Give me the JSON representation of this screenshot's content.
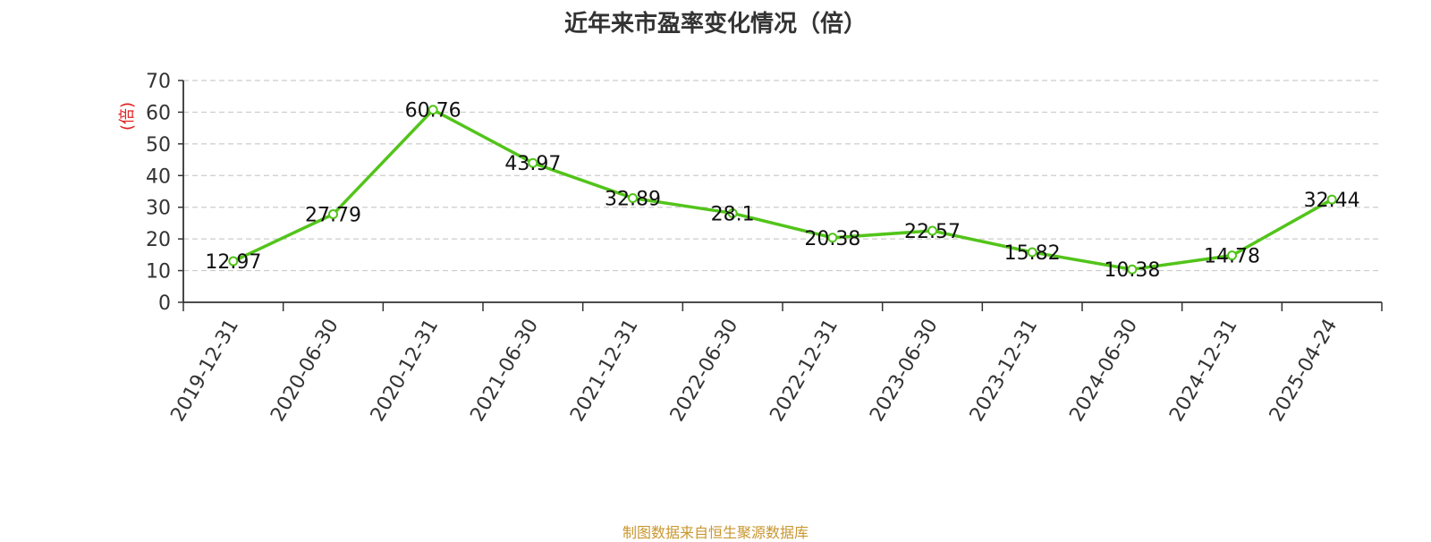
{
  "chart_data": {
    "type": "line",
    "title": "近年来市盈率变化情况（倍）",
    "ylabel": "(倍)",
    "xlabel": "",
    "ylim": [
      0,
      70
    ],
    "yticks": [
      0,
      10,
      20,
      30,
      40,
      50,
      60,
      70
    ],
    "grid": true,
    "categories": [
      "2019-12-31",
      "2020-06-30",
      "2020-12-31",
      "2021-06-30",
      "2021-12-31",
      "2022-06-30",
      "2022-12-31",
      "2023-06-30",
      "2023-12-31",
      "2024-06-30",
      "2024-12-31",
      "2025-04-24"
    ],
    "series": [
      {
        "values": [
          12.97,
          27.79,
          60.76,
          43.97,
          32.89,
          28.1,
          20.38,
          22.57,
          15.82,
          10.38,
          14.78,
          32.44
        ],
        "labels": [
          "12.97",
          "27.79",
          "60.76",
          "43.97",
          "32.89",
          "28.1",
          "20.38",
          "22.57",
          "15.82",
          "10.38",
          "14.78",
          "32.44"
        ]
      }
    ],
    "source": "制图数据来自恒生聚源数据库"
  },
  "colors": {
    "line": "#52c41a",
    "ylabel": "#e02020",
    "source": "#c9962f",
    "grid": "#cccccc",
    "axis": "#333333"
  }
}
